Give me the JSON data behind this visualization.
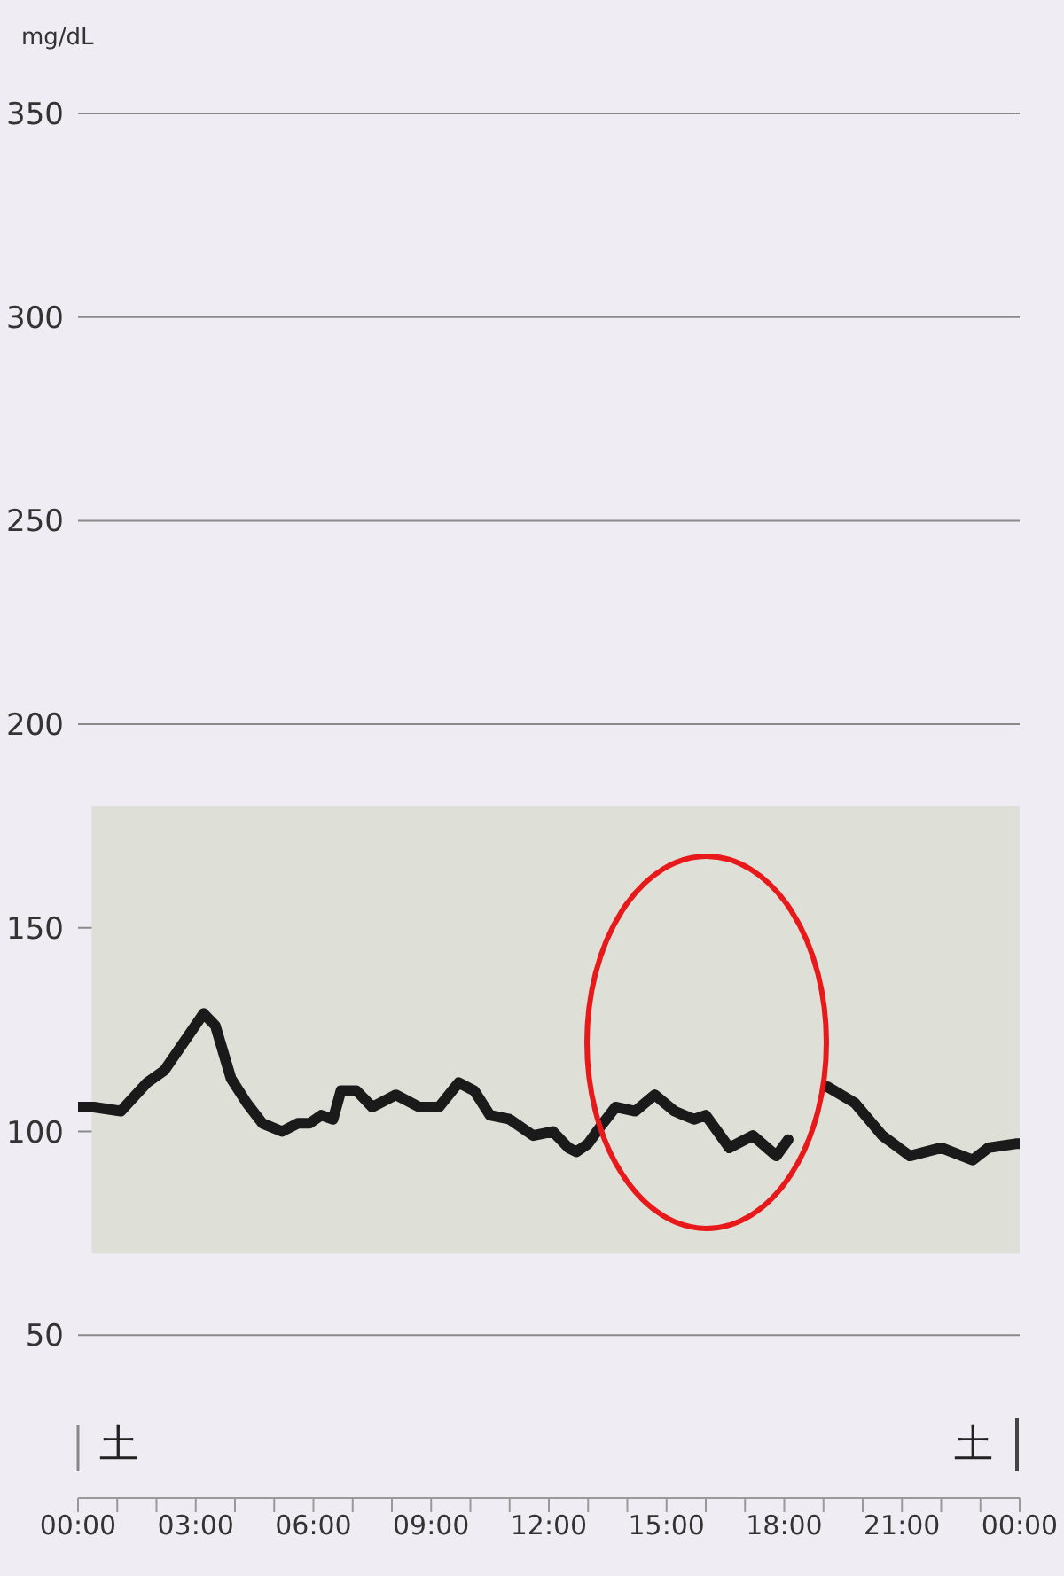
{
  "chart_data": {
    "type": "line",
    "ylabel": "mg/dL",
    "x": [
      0,
      0.4,
      1.09,
      1.76,
      2.2,
      3.2,
      3.5,
      3.9,
      4.3,
      4.7,
      5.2,
      5.6,
      5.9,
      6.2,
      6.5,
      6.7,
      7.1,
      7.5,
      8.1,
      8.7,
      9.2,
      9.7,
      10.1,
      10.5,
      11.0,
      11.6,
      12.1,
      12.5,
      12.7,
      13.0,
      13.3,
      13.7,
      14.2,
      14.7,
      15.2,
      15.7,
      16.0,
      16.6,
      17.2,
      17.8,
      18.1,
      18.6,
      19.1,
      19.8,
      20.5,
      21.2,
      22.0,
      22.8,
      23.2,
      23.9,
      24
    ],
    "series": [
      {
        "color": "#1a1a1a",
        "values": [
          106,
          106,
          105,
          112,
          115,
          129,
          126,
          113,
          107,
          102,
          100,
          102,
          102,
          104,
          103,
          110,
          110,
          106,
          109,
          106,
          106,
          112,
          110,
          104,
          103,
          99,
          100,
          96,
          95,
          97,
          101,
          106,
          105,
          109,
          105,
          103,
          104,
          96,
          99,
          94,
          98,
          null,
          111,
          107,
          99,
          94,
          96,
          93,
          96,
          97,
          97
        ]
      }
    ],
    "xlim": [
      0,
      24
    ],
    "xticks": [
      {
        "value": 0,
        "label": "00:00"
      },
      {
        "value": 1,
        "label": null
      },
      {
        "value": 2,
        "label": null
      },
      {
        "value": 3,
        "label": "03:00"
      },
      {
        "value": 4,
        "label": null
      },
      {
        "value": 5,
        "label": null
      },
      {
        "value": 6,
        "label": "06:00"
      },
      {
        "value": 7,
        "label": null
      },
      {
        "value": 8,
        "label": null
      },
      {
        "value": 9,
        "label": "09:00"
      },
      {
        "value": 10,
        "label": null
      },
      {
        "value": 11,
        "label": null
      },
      {
        "value": 12,
        "label": "12:00"
      },
      {
        "value": 13,
        "label": null
      },
      {
        "value": 14,
        "label": null
      },
      {
        "value": 15,
        "label": "15:00"
      },
      {
        "value": 16,
        "label": null
      },
      {
        "value": 17,
        "label": null
      },
      {
        "value": 18,
        "label": "18:00"
      },
      {
        "value": 19,
        "label": null
      },
      {
        "value": 20,
        "label": null
      },
      {
        "value": 21,
        "label": "21:00"
      },
      {
        "value": 22,
        "label": null
      },
      {
        "value": 23,
        "label": null
      },
      {
        "value": 24,
        "label": "00:00"
      }
    ],
    "ylim": [
      10,
      350
    ],
    "yticks": [
      50,
      100,
      150,
      200,
      250,
      300,
      350
    ],
    "grid": "y",
    "bands": [
      {
        "axis": "y",
        "from": 70,
        "to": 180,
        "color": "#dedfd7"
      }
    ],
    "annotations": [
      "土",
      "土"
    ]
  }
}
